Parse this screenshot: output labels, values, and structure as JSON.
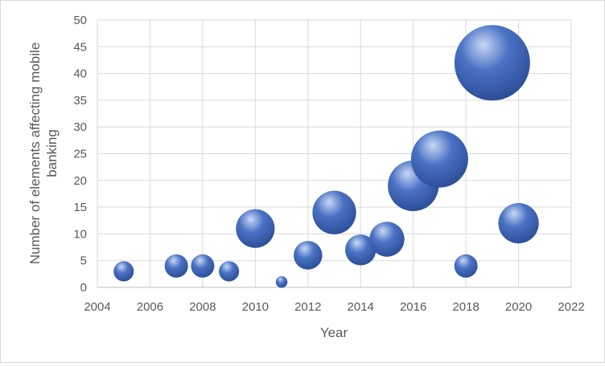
{
  "chart_data": {
    "type": "bubble",
    "xlabel": "Year",
    "ylabel": "Number of elements affecting mobile banking",
    "xlim": [
      2004,
      2022
    ],
    "ylim": [
      0,
      50
    ],
    "x_ticks": [
      2004,
      2006,
      2008,
      2010,
      2012,
      2014,
      2016,
      2018,
      2020,
      2022
    ],
    "y_ticks": [
      0,
      5,
      10,
      15,
      20,
      25,
      30,
      35,
      40,
      45,
      50
    ],
    "grid": true,
    "bubble_color": "#4a72c4",
    "bubble_highlight": "#c9d8f5",
    "bubble_shadow": "#2c4d96",
    "points": [
      {
        "x": 2005,
        "y": 3,
        "size": 3
      },
      {
        "x": 2007,
        "y": 4,
        "size": 4
      },
      {
        "x": 2008,
        "y": 4,
        "size": 4
      },
      {
        "x": 2009,
        "y": 3,
        "size": 3
      },
      {
        "x": 2010,
        "y": 11,
        "size": 11
      },
      {
        "x": 2011,
        "y": 1,
        "size": 1
      },
      {
        "x": 2012,
        "y": 6,
        "size": 6
      },
      {
        "x": 2013,
        "y": 14,
        "size": 14
      },
      {
        "x": 2014,
        "y": 7,
        "size": 7
      },
      {
        "x": 2015,
        "y": 9,
        "size": 9
      },
      {
        "x": 2016,
        "y": 19,
        "size": 19
      },
      {
        "x": 2017,
        "y": 24,
        "size": 24
      },
      {
        "x": 2018,
        "y": 4,
        "size": 4
      },
      {
        "x": 2019,
        "y": 42,
        "size": 42
      },
      {
        "x": 2020,
        "y": 12,
        "size": 12
      }
    ]
  }
}
